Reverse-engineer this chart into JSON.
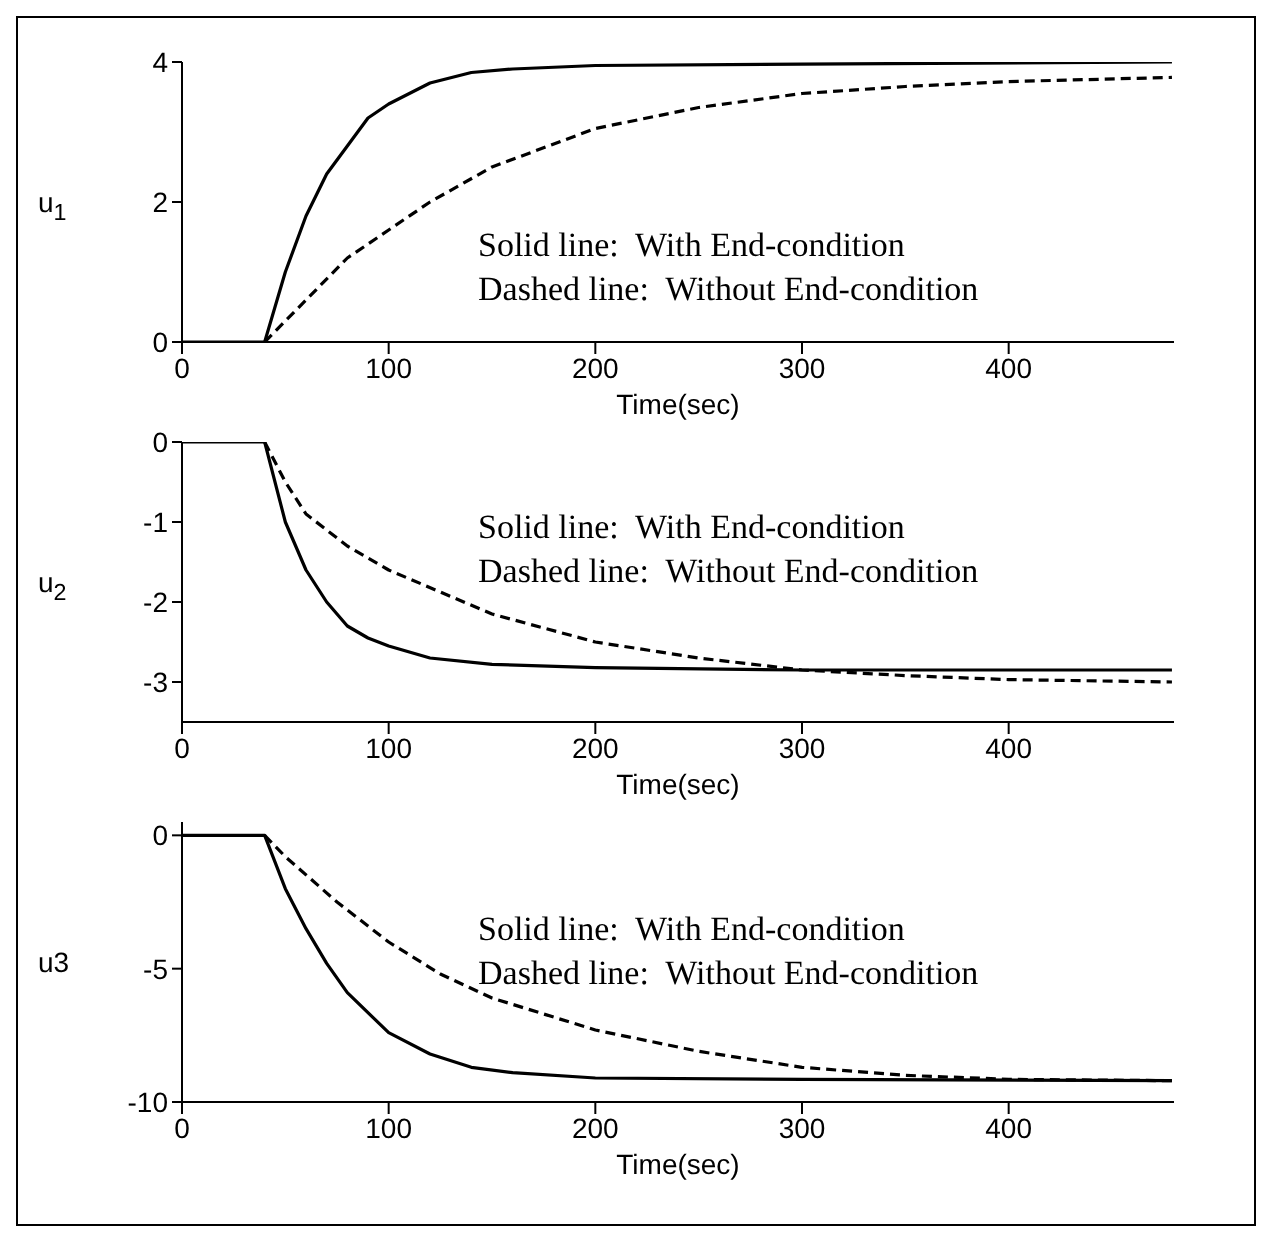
{
  "chart_data": [
    {
      "type": "line",
      "xlabel": "Time(sec)",
      "ylabel": "u$_{1}$",
      "xlim": [
        0,
        480
      ],
      "xticks": [
        0,
        100,
        200,
        300,
        400
      ],
      "ylim": [
        0,
        4
      ],
      "yticks": [
        0,
        2,
        4
      ],
      "grid": false,
      "legend": false,
      "marker": "none",
      "annotations": [
        "Solid line:  With End-condition",
        "Dashed line:  Without End-condition"
      ],
      "series": [
        {
          "color": "#000000",
          "line_style": "solid",
          "x": [
            0,
            40,
            50,
            60,
            70,
            80,
            90,
            100,
            120,
            140,
            160,
            200,
            300,
            479
          ],
          "values": [
            0,
            0,
            1.0,
            1.8,
            2.4,
            2.8,
            3.2,
            3.4,
            3.7,
            3.85,
            3.9,
            3.95,
            3.97,
            4.0
          ]
        },
        {
          "color": "#000000",
          "line_style": "dashed",
          "x": [
            40,
            60,
            80,
            100,
            120,
            150,
            200,
            250,
            300,
            350,
            400,
            479
          ],
          "values": [
            0,
            0.6,
            1.2,
            1.6,
            2.0,
            2.5,
            3.05,
            3.35,
            3.55,
            3.65,
            3.72,
            3.78
          ]
        }
      ]
    },
    {
      "type": "line",
      "xlabel": "Time(sec)",
      "ylabel": "u$_{2}$",
      "xlim": [
        0,
        480
      ],
      "xticks": [
        0,
        100,
        200,
        300,
        400
      ],
      "ylim": [
        -3.5,
        0
      ],
      "yticks": [
        0,
        -1,
        -2,
        -3
      ],
      "grid": false,
      "legend": false,
      "marker": "none",
      "annotations": [
        "Solid line:  With End-condition",
        "Dashed line:  Without End-condition"
      ],
      "series": [
        {
          "color": "#000000",
          "line_style": "solid",
          "x": [
            0,
            40,
            50,
            60,
            70,
            80,
            90,
            100,
            120,
            150,
            200,
            300,
            479
          ],
          "values": [
            0,
            0,
            -1.0,
            -1.6,
            -2.0,
            -2.3,
            -2.45,
            -2.55,
            -2.7,
            -2.78,
            -2.82,
            -2.85,
            -2.85
          ]
        },
        {
          "color": "#000000",
          "line_style": "dashed",
          "x": [
            40,
            50,
            60,
            80,
            100,
            150,
            200,
            250,
            300,
            350,
            400,
            479
          ],
          "values": [
            0,
            -0.5,
            -0.9,
            -1.3,
            -1.6,
            -2.15,
            -2.5,
            -2.7,
            -2.85,
            -2.92,
            -2.97,
            -3.0
          ]
        }
      ]
    },
    {
      "type": "line",
      "xlabel": "Time(sec)",
      "ylabel": "u3",
      "xlim": [
        0,
        480
      ],
      "xticks": [
        0,
        100,
        200,
        300,
        400
      ],
      "ylim": [
        -10,
        0.5
      ],
      "yticks": [
        0,
        -5,
        -10
      ],
      "grid": false,
      "legend": false,
      "marker": "none",
      "annotations": [
        "Solid line:  With End-condition",
        "Dashed line:  Without End-condition"
      ],
      "series": [
        {
          "color": "#000000",
          "line_style": "solid",
          "x": [
            0,
            40,
            50,
            60,
            70,
            80,
            100,
            120,
            140,
            160,
            200,
            300,
            479
          ],
          "values": [
            0,
            0,
            -2.0,
            -3.5,
            -4.8,
            -5.9,
            -7.4,
            -8.2,
            -8.7,
            -8.9,
            -9.1,
            -9.15,
            -9.2
          ]
        },
        {
          "color": "#000000",
          "line_style": "dashed",
          "x": [
            40,
            50,
            75,
            100,
            125,
            150,
            200,
            250,
            300,
            350,
            400,
            479
          ],
          "values": [
            0,
            -0.8,
            -2.5,
            -4.0,
            -5.2,
            -6.1,
            -7.3,
            -8.1,
            -8.7,
            -9.0,
            -9.15,
            -9.2
          ]
        }
      ]
    }
  ]
}
